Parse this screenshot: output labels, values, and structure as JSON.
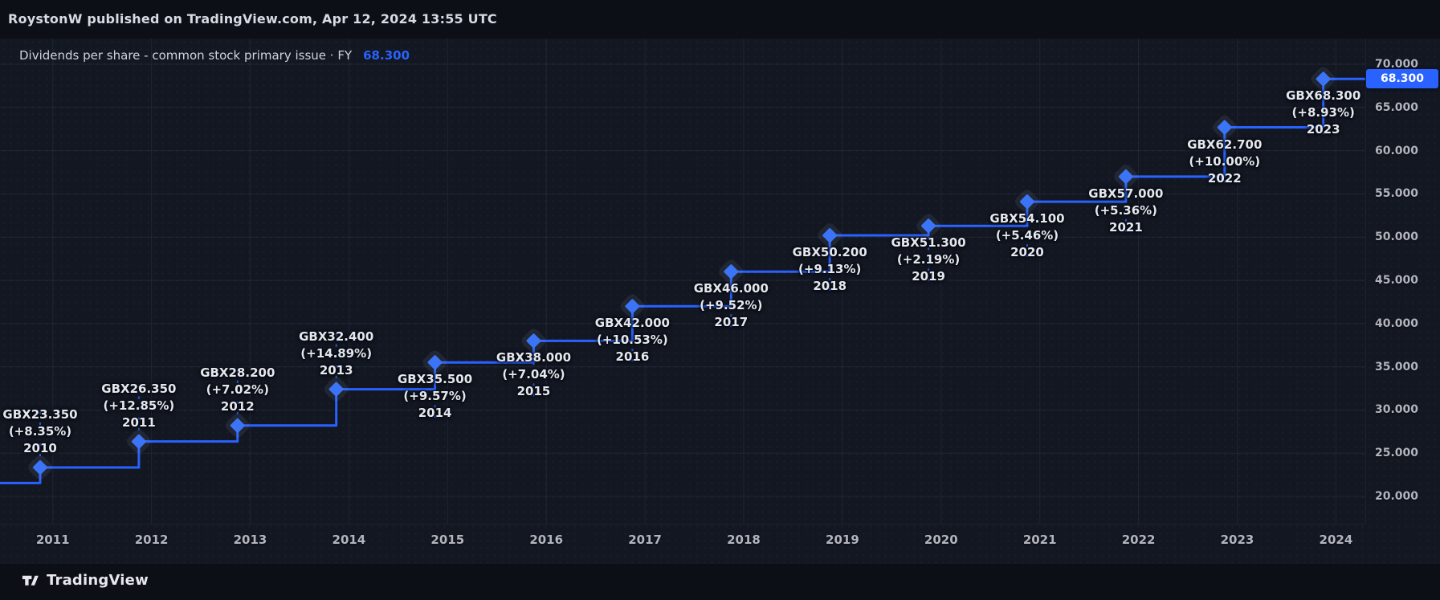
{
  "topbar": {
    "publish_text": "RoystonW published on TradingView.com, Apr 12, 2024 13:55 UTC"
  },
  "titlebar": {
    "title": "Dividends per share - common stock primary issue · FY",
    "value": "68.300"
  },
  "footer": {
    "brand": "TradingView"
  },
  "colors": {
    "accent": "#2962FF",
    "diamond": "#3B74F6",
    "marker_halo": "rgba(160,175,205,0.10)",
    "grid": "rgba(140,158,192,0.10)",
    "badge_bg": "#2962FF",
    "badge_text": "#ffffff"
  },
  "chart_data": {
    "type": "line",
    "subtype": "step-line-with-diamond-markers",
    "title": "Dividends per share - common stock primary issue · FY",
    "unit": "GBX",
    "last_value_badge": "68.300",
    "lead_in_value": 21.55,
    "x": [
      2010,
      2011,
      2012,
      2013,
      2014,
      2015,
      2016,
      2017,
      2018,
      2019,
      2020,
      2021,
      2022,
      2023
    ],
    "values": [
      23.35,
      26.35,
      28.2,
      32.4,
      35.5,
      38.0,
      42.0,
      46.0,
      50.2,
      51.3,
      54.1,
      57.0,
      62.7,
      68.3
    ],
    "points": [
      {
        "year": 2010,
        "value": 23.35,
        "label_value": "GBX23.350",
        "label_pct": "(+8.35%)",
        "label_year": "2010",
        "label_side": "above"
      },
      {
        "year": 2011,
        "value": 26.35,
        "label_value": "GBX26.350",
        "label_pct": "(+12.85%)",
        "label_year": "2011",
        "label_side": "above"
      },
      {
        "year": 2012,
        "value": 28.2,
        "label_value": "GBX28.200",
        "label_pct": "(+7.02%)",
        "label_year": "2012",
        "label_side": "above"
      },
      {
        "year": 2013,
        "value": 32.4,
        "label_value": "GBX32.400",
        "label_pct": "(+14.89%)",
        "label_year": "2013",
        "label_side": "above"
      },
      {
        "year": 2014,
        "value": 35.5,
        "label_value": "GBX35.500",
        "label_pct": "(+9.57%)",
        "label_year": "2014",
        "label_side": "below"
      },
      {
        "year": 2015,
        "value": 38.0,
        "label_value": "GBX38.000",
        "label_pct": "(+7.04%)",
        "label_year": "2015",
        "label_side": "below"
      },
      {
        "year": 2016,
        "value": 42.0,
        "label_value": "GBX42.000",
        "label_pct": "(+10.53%)",
        "label_year": "2016",
        "label_side": "below"
      },
      {
        "year": 2017,
        "value": 46.0,
        "label_value": "GBX46.000",
        "label_pct": "(+9.52%)",
        "label_year": "2017",
        "label_side": "below"
      },
      {
        "year": 2018,
        "value": 50.2,
        "label_value": "GBX50.200",
        "label_pct": "(+9.13%)",
        "label_year": "2018",
        "label_side": "below"
      },
      {
        "year": 2019,
        "value": 51.3,
        "label_value": "GBX51.300",
        "label_pct": "(+2.19%)",
        "label_year": "2019",
        "label_side": "below"
      },
      {
        "year": 2020,
        "value": 54.1,
        "label_value": "GBX54.100",
        "label_pct": "(+5.46%)",
        "label_year": "2020",
        "label_side": "below"
      },
      {
        "year": 2021,
        "value": 57.0,
        "label_value": "GBX57.000",
        "label_pct": "(+5.36%)",
        "label_year": "2021",
        "label_side": "below"
      },
      {
        "year": 2022,
        "value": 62.7,
        "label_value": "GBX62.700",
        "label_pct": "(+10.00%)",
        "label_year": "2022",
        "label_side": "below"
      },
      {
        "year": 2023,
        "value": 68.3,
        "label_value": "GBX68.300",
        "label_pct": "(+8.93%)",
        "label_year": "2023",
        "label_side": "below"
      }
    ],
    "y_axis": {
      "ticks": [
        {
          "label": "70.000",
          "value": 70
        },
        {
          "label": "65.000",
          "value": 65
        },
        {
          "label": "60.000",
          "value": 60
        },
        {
          "label": "55.000",
          "value": 55
        },
        {
          "label": "50.000",
          "value": 50
        },
        {
          "label": "45.000",
          "value": 45
        },
        {
          "label": "40.000",
          "value": 40
        },
        {
          "label": "35.000",
          "value": 35
        },
        {
          "label": "30.000",
          "value": 30
        },
        {
          "label": "25.000",
          "value": 25
        },
        {
          "label": "20.000",
          "value": 20
        }
      ],
      "position": "right",
      "grid": true
    },
    "x_axis": {
      "ticks": [
        {
          "label": "2011",
          "year": 2011
        },
        {
          "label": "2012",
          "year": 2012
        },
        {
          "label": "2013",
          "year": 2013
        },
        {
          "label": "2014",
          "year": 2014
        },
        {
          "label": "2015",
          "year": 2015
        },
        {
          "label": "2016",
          "year": 2016
        },
        {
          "label": "2017",
          "year": 2017
        },
        {
          "label": "2018",
          "year": 2018
        },
        {
          "label": "2019",
          "year": 2019
        },
        {
          "label": "2020",
          "year": 2020
        },
        {
          "label": "2021",
          "year": 2021
        },
        {
          "label": "2022",
          "year": 2022
        },
        {
          "label": "2023",
          "year": 2023
        },
        {
          "label": "2024",
          "year": 2024
        }
      ],
      "grid": true
    }
  }
}
